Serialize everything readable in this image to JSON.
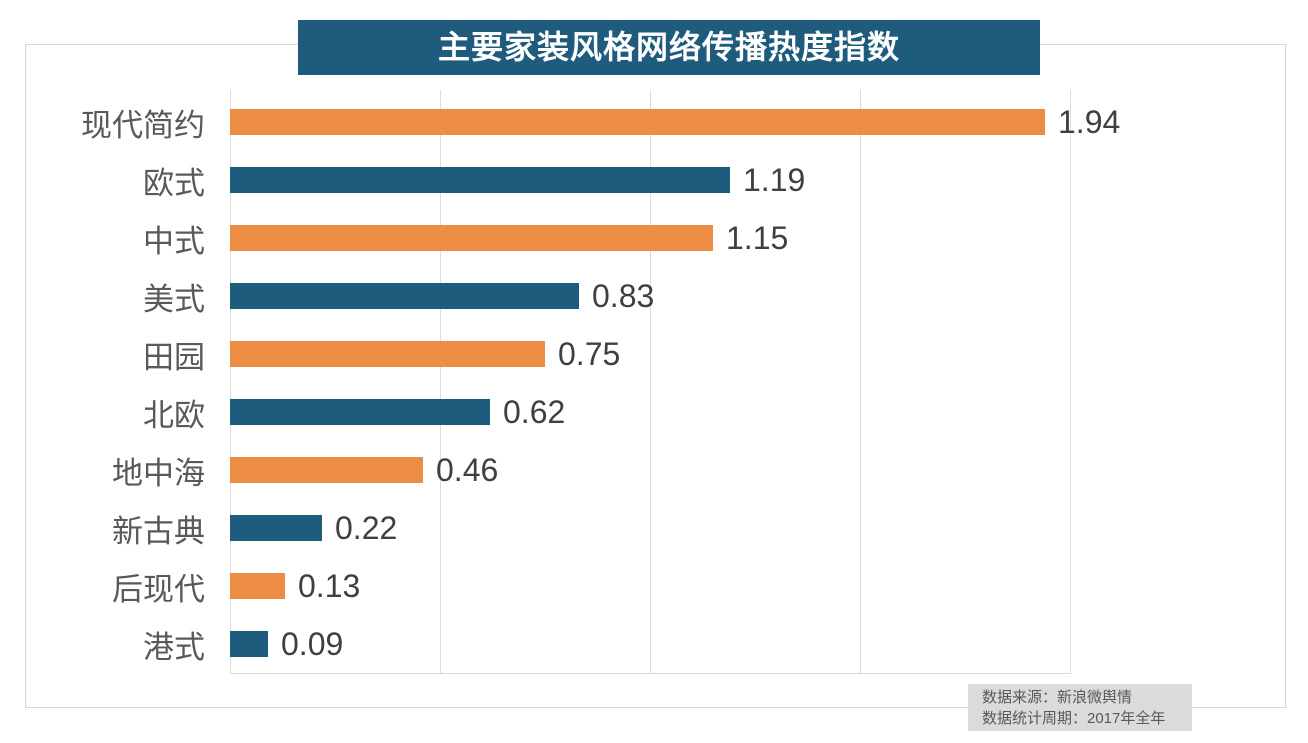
{
  "title": "主要家装风格网络传播热度指数",
  "colors": {
    "title_bg": "#1e5b7c",
    "title_text": "#ffffff",
    "bar_orange": "#ed8c45",
    "bar_blue": "#1e5c7d",
    "category_label": "#595959",
    "value_label": "#3f3f3f",
    "gridline": "#dcdcdc",
    "border": "#d6d6d6",
    "footer_bg": "#dbdbdb",
    "footer_text": "#595959"
  },
  "chart_data": {
    "type": "bar",
    "orientation": "horizontal",
    "title": "主要家装风格网络传播热度指数",
    "categories": [
      "现代简约",
      "欧式",
      "中式",
      "美式",
      "田园",
      "北欧",
      "地中海",
      "新古典",
      "后现代",
      "港式"
    ],
    "values": [
      1.94,
      1.19,
      1.15,
      0.83,
      0.75,
      0.62,
      0.46,
      0.22,
      0.13,
      0.09
    ],
    "bar_colors_alternate": [
      "#ed8c45",
      "#1e5c7d"
    ],
    "xlim": [
      0,
      2.0
    ],
    "gridline_values": [
      0,
      0.5,
      1.0,
      1.5,
      2.0
    ],
    "grid": true,
    "value_label_decimals": 2,
    "legend": "none",
    "xlabel": "",
    "ylabel": ""
  },
  "footer": {
    "lines": [
      "数据来源：新浪微舆情",
      "数据统计周期：2017年全年"
    ]
  }
}
